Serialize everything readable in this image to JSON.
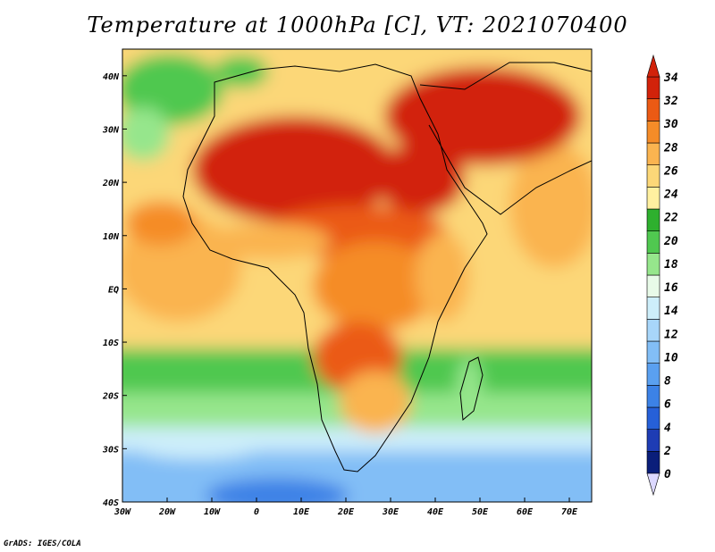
{
  "title": "Temperature at 1000hPa [C], VT: 2021070400",
  "credit": "GrADS: IGES/COLA",
  "map": {
    "lon_range": [
      -30,
      75
    ],
    "lat_range": [
      -40,
      45
    ],
    "x_ticks": [
      "30W",
      "20W",
      "10W",
      "0",
      "10E",
      "20E",
      "30E",
      "40E",
      "50E",
      "60E",
      "70E"
    ],
    "y_ticks": [
      "40S",
      "30S",
      "20S",
      "10S",
      "EQ",
      "10N",
      "20N",
      "30N",
      "40N"
    ],
    "x_tick_values": [
      -30,
      -20,
      -10,
      0,
      10,
      20,
      30,
      40,
      50,
      60,
      70
    ],
    "y_tick_values": [
      -40,
      -30,
      -20,
      -10,
      0,
      10,
      20,
      30,
      40
    ]
  },
  "colorbar": {
    "levels": [
      "0",
      "2",
      "4",
      "6",
      "8",
      "10",
      "12",
      "14",
      "16",
      "18",
      "20",
      "22",
      "24",
      "26",
      "28",
      "30",
      "32",
      "34"
    ],
    "colors": [
      "#0a1e7a",
      "#1e3cb4",
      "#2660d8",
      "#3c82e6",
      "#5aa0f0",
      "#82bef6",
      "#a8d6fa",
      "#cdeefa",
      "#e8fae8",
      "#96e68c",
      "#50c850",
      "#2eb02e",
      "#fff0a0",
      "#fcd778",
      "#fab450",
      "#f58c28",
      "#eb5a14",
      "#d2220a"
    ]
  }
}
